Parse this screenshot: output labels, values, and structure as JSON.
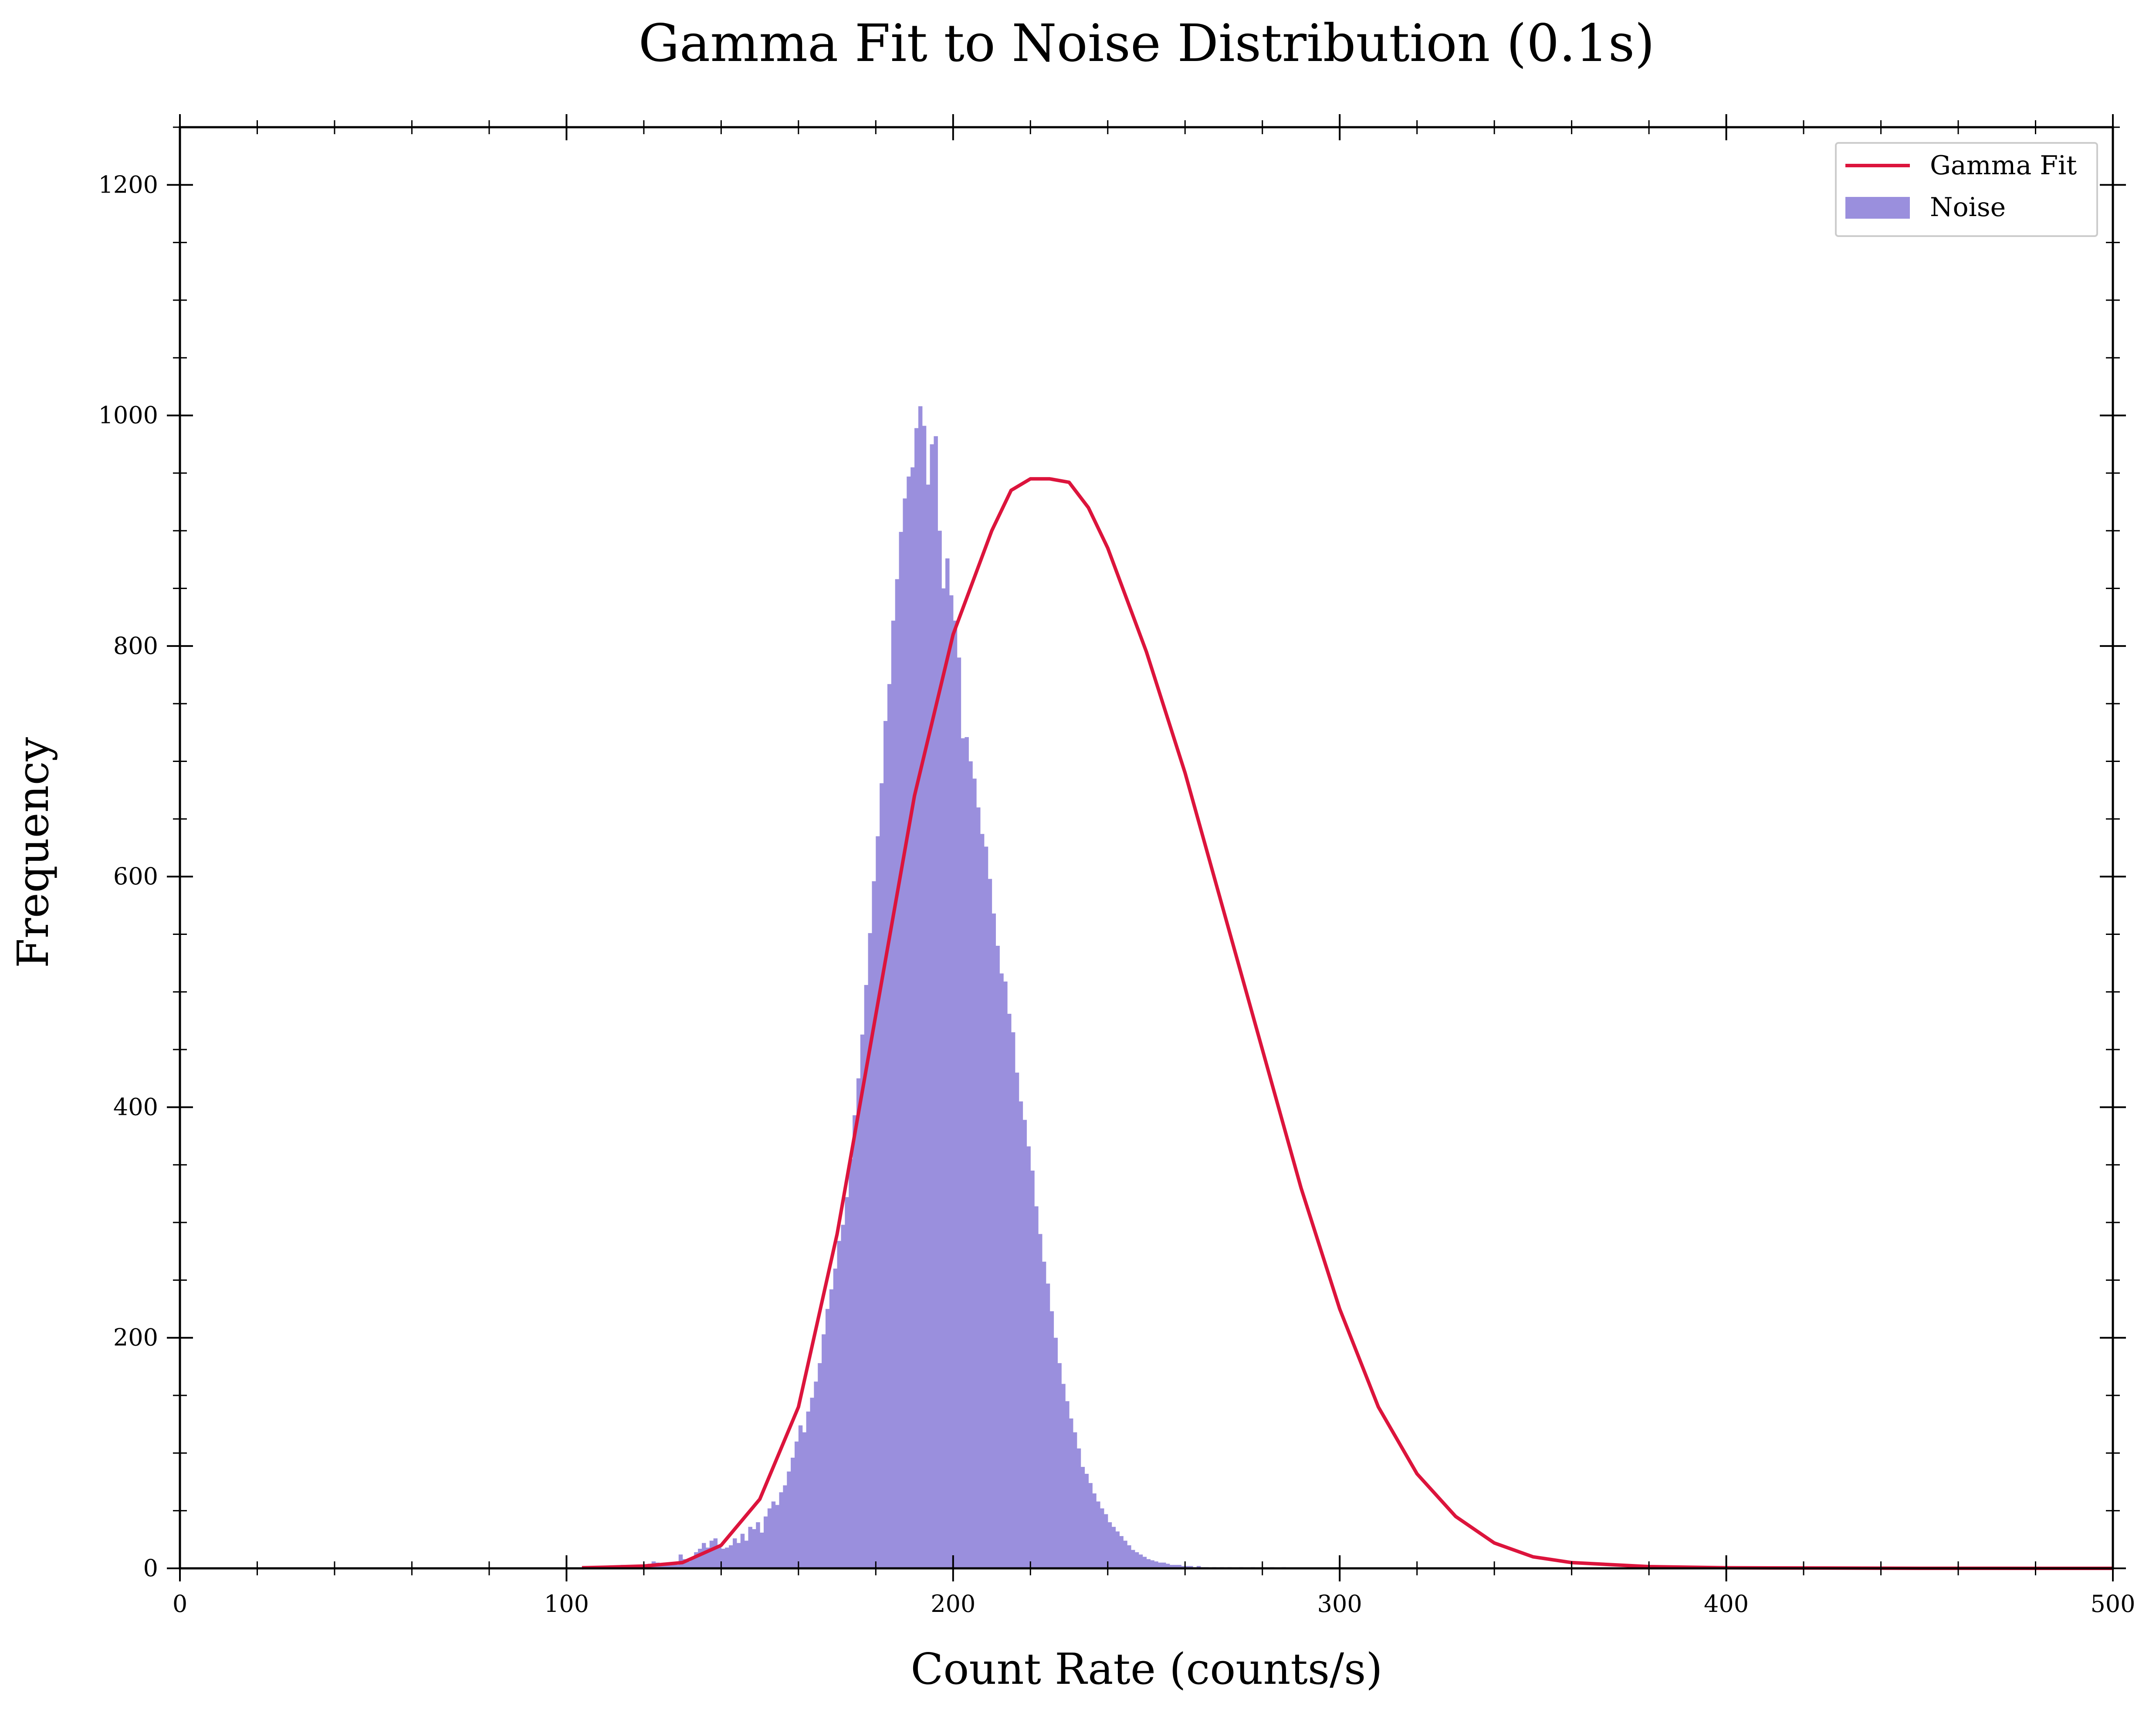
{
  "chart_data": {
    "type": "bar",
    "title": "Gamma Fit to Noise Distribution (0.1s)",
    "xlabel": "Count Rate (counts/s)",
    "ylabel": "Frequency",
    "xlim": [
      0,
      500
    ],
    "ylim": [
      0,
      1250
    ],
    "x_ticks": [
      "0",
      "100",
      "200",
      "300",
      "400",
      "500"
    ],
    "y_ticks": [
      "0",
      "200",
      "400",
      "600",
      "800",
      "1000",
      "1200"
    ],
    "grid": false,
    "legend": {
      "placement": "top-right",
      "entries": [
        {
          "label": "Gamma Fit",
          "kind": "line",
          "color": "#dc143c"
        },
        {
          "label": "Noise",
          "kind": "patch",
          "color": "#9a8fdd"
        }
      ]
    },
    "series": [
      {
        "name": "Noise",
        "kind": "histogram",
        "color": "#9a8fdd",
        "bin_width": 1.0,
        "bin_start": 104,
        "values": [
          2,
          1,
          1,
          2,
          1,
          1,
          2,
          1,
          1,
          2,
          3,
          2,
          1,
          2,
          3,
          2,
          3,
          4,
          6,
          5,
          3,
          4,
          4,
          5,
          3,
          12,
          8,
          6,
          9,
          14,
          17,
          22,
          18,
          24,
          26,
          20,
          17,
          18,
          20,
          26,
          22,
          30,
          24,
          36,
          34,
          40,
          31,
          45,
          52,
          58,
          55,
          66,
          72,
          84,
          96,
          110,
          124,
          118,
          136,
          148,
          162,
          178,
          203,
          225,
          242,
          260,
          284,
          298,
          322,
          355,
          393,
          425,
          463,
          506,
          551,
          596,
          635,
          681,
          735,
          767,
          822,
          858,
          899,
          928,
          947,
          955,
          989,
          1008,
          991,
          940,
          975,
          982,
          900,
          850,
          876,
          844,
          822,
          790,
          720,
          721,
          700,
          685,
          660,
          637,
          626,
          598,
          568,
          540,
          516,
          509,
          481,
          465,
          430,
          405,
          389,
          366,
          345,
          314,
          290,
          266,
          247,
          223,
          200,
          178,
          160,
          145,
          130,
          118,
          104,
          88,
          82,
          74,
          65,
          58,
          52,
          47,
          40,
          36,
          32,
          28,
          24,
          20,
          16,
          14,
          12,
          10,
          8,
          7,
          6,
          5,
          5,
          4,
          3,
          3,
          3,
          2,
          2,
          2,
          1,
          2,
          1,
          1,
          0,
          1,
          0,
          1,
          0,
          1,
          0,
          0,
          1,
          0,
          0,
          1,
          0,
          0,
          0,
          0,
          1,
          0,
          0,
          1
        ]
      },
      {
        "name": "Gamma Fit",
        "kind": "line",
        "color": "#dc143c",
        "x": [
          104,
          110,
          120,
          130,
          140,
          150,
          160,
          170,
          180,
          190,
          200,
          210,
          215,
          220,
          225,
          230,
          235,
          240,
          245,
          250,
          260,
          270,
          280,
          290,
          300,
          310,
          320,
          330,
          340,
          350,
          360,
          380,
          400,
          450,
          500
        ],
        "values": [
          0.5,
          1,
          2,
          5,
          20,
          60,
          140,
          290,
          480,
          670,
          810,
          900,
          935,
          945,
          945,
          942,
          920,
          885,
          840,
          795,
          690,
          570,
          450,
          330,
          225,
          140,
          82,
          45,
          22,
          10,
          5,
          1.5,
          0.5,
          0.05,
          0
        ]
      }
    ]
  }
}
